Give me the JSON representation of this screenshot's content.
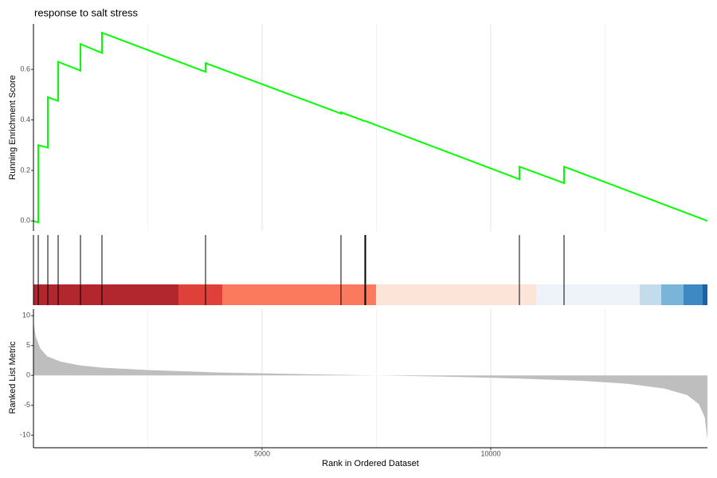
{
  "chart_data": {
    "type": "gsea",
    "title": "response to salt stress",
    "xlabel": "Rank in Ordered Dataset",
    "xlim": [
      0,
      14739
    ],
    "xticks": [
      5000,
      10000
    ],
    "xminor": [
      2500,
      7500,
      12500
    ],
    "es": {
      "ylabel": "Running Enrichment Score",
      "ylim": [
        -0.04,
        0.78
      ],
      "yticks": [
        {
          "value": 0,
          "label": "0.0"
        },
        0.2,
        0.4,
        0.6
      ],
      "color": "#00ff00",
      "x": [
        0,
        105,
        105,
        314,
        314,
        540,
        540,
        1028,
        1028,
        1498,
        1498,
        3763,
        3763,
        6725,
        6725,
        7247,
        7265,
        10627,
        10627,
        11603,
        11603,
        14739
      ],
      "values": [
        0,
        -0.006,
        0.3,
        0.29,
        0.49,
        0.475,
        0.63,
        0.595,
        0.7,
        0.665,
        0.745,
        0.59,
        0.625,
        0.425,
        0.43,
        0.395,
        0.395,
        0.165,
        0.215,
        0.15,
        0.215,
        0.0
      ]
    },
    "hits": [
      105,
      314,
      540,
      1028,
      1498,
      3763,
      6725,
      7247,
      7265,
      10627,
      11603
    ],
    "color_bands": [
      {
        "start": 0,
        "end": 3171,
        "color": "#b2262e"
      },
      {
        "start": 3171,
        "end": 4129,
        "color": "#e0403a"
      },
      {
        "start": 4129,
        "end": 7491,
        "color": "#fb7a5d"
      },
      {
        "start": 7491,
        "end": 10993,
        "color": "#fde4d9"
      },
      {
        "start": 10993,
        "end": 13258,
        "color": "#eef3fa"
      },
      {
        "start": 13258,
        "end": 13728,
        "color": "#c3dbea"
      },
      {
        "start": 13728,
        "end": 14216,
        "color": "#7ab4d9"
      },
      {
        "start": 14216,
        "end": 14634,
        "color": "#3e88c3"
      },
      {
        "start": 14634,
        "end": 14739,
        "color": "#1c62a8"
      }
    ],
    "metric": {
      "ylabel": "Ranked List Metric",
      "ylim": [
        -12.1,
        11.1
      ],
      "yticks": [
        10,
        5,
        0,
        -5,
        -10
      ],
      "color": "#bebebe",
      "x": [
        0,
        50,
        150,
        300,
        600,
        1000,
        1500,
        2500,
        4000,
        6000,
        7500,
        9000,
        10500,
        12000,
        13000,
        13800,
        14300,
        14550,
        14680,
        14739
      ],
      "values": [
        9,
        6.5,
        4.5,
        3.2,
        2.3,
        1.7,
        1.3,
        0.9,
        0.5,
        0.2,
        0,
        -0.2,
        -0.5,
        -0.9,
        -1.4,
        -2.2,
        -3.3,
        -4.8,
        -7,
        -10.8
      ]
    }
  }
}
